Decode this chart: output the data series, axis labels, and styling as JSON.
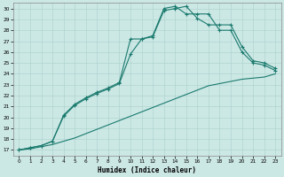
{
  "xlabel": "Humidex (Indice chaleur)",
  "bg_color": "#cce8e5",
  "grid_color": "#b0d4d0",
  "line_color": "#1a7a6e",
  "xlim": [
    -0.5,
    23.5
  ],
  "ylim": [
    16.5,
    30.5
  ],
  "xticks": [
    0,
    1,
    2,
    3,
    4,
    5,
    6,
    7,
    8,
    9,
    10,
    11,
    12,
    13,
    14,
    15,
    16,
    17,
    18,
    19,
    20,
    21,
    22,
    23
  ],
  "yticks": [
    17,
    18,
    19,
    20,
    21,
    22,
    23,
    24,
    25,
    26,
    27,
    28,
    29,
    30
  ],
  "line1_x": [
    0,
    1,
    2,
    3,
    4,
    5,
    6,
    7,
    8,
    9,
    10,
    11,
    12,
    13,
    14,
    15,
    16,
    17,
    18,
    19,
    20,
    21,
    22,
    23
  ],
  "line1_y": [
    17,
    17.1,
    17.3,
    17.5,
    17.8,
    18.1,
    18.5,
    18.9,
    19.3,
    19.7,
    20.1,
    20.5,
    20.9,
    21.3,
    21.7,
    22.1,
    22.5,
    22.9,
    23.1,
    23.3,
    23.5,
    23.6,
    23.7,
    24.0
  ],
  "line2_x": [
    0,
    1,
    2,
    3,
    4,
    5,
    6,
    7,
    8,
    9,
    10,
    11,
    12,
    13,
    14,
    15,
    16,
    17,
    18,
    19,
    20,
    21,
    22,
    23
  ],
  "line2_y": [
    17,
    17.2,
    17.4,
    17.8,
    20.2,
    21.2,
    21.8,
    22.3,
    22.7,
    23.2,
    27.2,
    27.2,
    27.4,
    29.8,
    30.0,
    30.2,
    29.1,
    28.5,
    28.5,
    28.5,
    26.5,
    25.2,
    25.0,
    24.5
  ],
  "line3_x": [
    0,
    1,
    2,
    3,
    4,
    5,
    6,
    7,
    8,
    9,
    10,
    11,
    12,
    13,
    14,
    15,
    16,
    17,
    18,
    19,
    20,
    21,
    22,
    23
  ],
  "line3_y": [
    17,
    17.2,
    17.4,
    17.8,
    20.1,
    21.1,
    21.7,
    22.2,
    22.6,
    23.1,
    25.8,
    27.2,
    27.5,
    30.0,
    30.2,
    29.5,
    29.5,
    29.5,
    28.0,
    28.0,
    26.0,
    25.0,
    24.8,
    24.3
  ]
}
